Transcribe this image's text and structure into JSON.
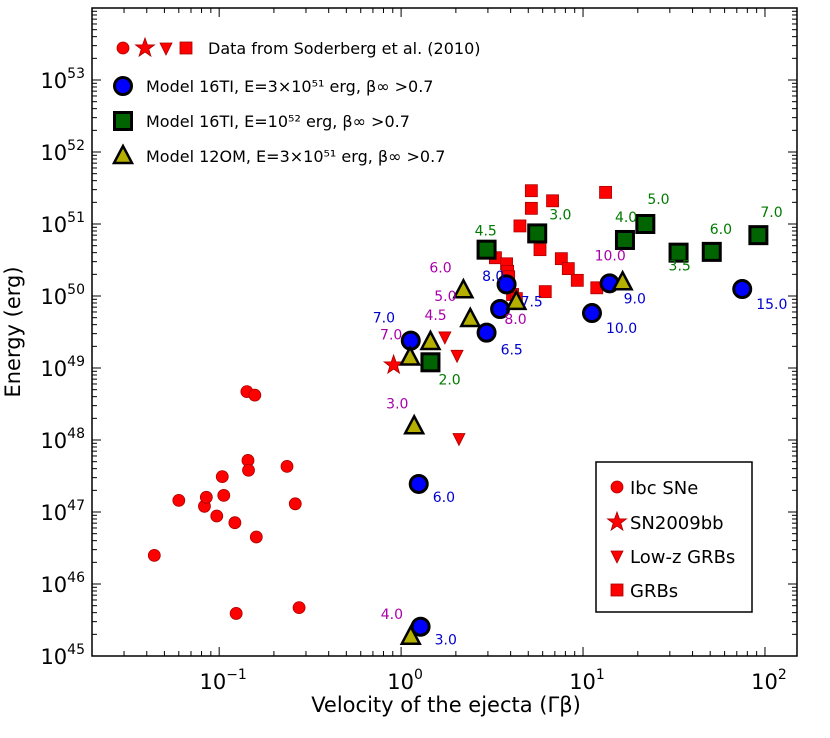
{
  "chart_data": {
    "type": "scatter",
    "xscale": "log",
    "yscale": "log",
    "xlim": [
      0.02,
      150
    ],
    "ylim": [
      1e+45,
      1e+54
    ],
    "xlabel": "Velocity of the ejecta (Γβ)",
    "ylabel": "Energy (erg)",
    "x_ticks": [
      {
        "value": 0.1,
        "base": "10",
        "exp": "−1"
      },
      {
        "value": 1,
        "base": "10",
        "exp": "0"
      },
      {
        "value": 10,
        "base": "10",
        "exp": "1"
      },
      {
        "value": 100,
        "base": "10",
        "exp": "2"
      }
    ],
    "y_ticks": [
      {
        "value": 1e+45,
        "base": "10",
        "exp": "45"
      },
      {
        "value": 1e+46,
        "base": "10",
        "exp": "46"
      },
      {
        "value": 1e+47,
        "base": "10",
        "exp": "47"
      },
      {
        "value": 1e+48,
        "base": "10",
        "exp": "48"
      },
      {
        "value": 1e+49,
        "base": "10",
        "exp": "49"
      },
      {
        "value": 1e+50,
        "base": "10",
        "exp": "50"
      },
      {
        "value": 1e+51,
        "base": "10",
        "exp": "51"
      },
      {
        "value": 1e+52,
        "base": "10",
        "exp": "52"
      },
      {
        "value": 1e+53,
        "base": "10",
        "exp": "53"
      }
    ],
    "legend_top": [
      {
        "kind": "soderberg",
        "text": "Data from Soderberg et al. (2010)"
      },
      {
        "kind": "model16_circle",
        "text": "Model 16TI, E=3×10⁵¹ erg, β∞ >0.7"
      },
      {
        "kind": "model16_square",
        "text": "Model 16TI, E=10⁵² erg, β∞ >0.7"
      },
      {
        "kind": "model12_triangle",
        "text": "Model 12OM, E=3×10⁵¹ erg, β∞ >0.7"
      }
    ],
    "legend_bottom": [
      {
        "kind": "ibc",
        "text": "Ibc SNe"
      },
      {
        "kind": "star",
        "text": "SN2009bb"
      },
      {
        "kind": "lowz",
        "text": "Low-z GRBs"
      },
      {
        "kind": "grb",
        "text": "GRBs"
      }
    ],
    "series": [
      {
        "name": "Ibc SNe",
        "marker": "circle-small",
        "color": "#ff0000",
        "points": [
          [
            0.044,
            2.5e+46
          ],
          [
            0.06,
            1.45e+47
          ],
          [
            0.083,
            1.2e+47
          ],
          [
            0.085,
            1.6e+47
          ],
          [
            0.097,
            8.8e+46
          ],
          [
            0.104,
            3.1e+47
          ],
          [
            0.106,
            1.7e+47
          ],
          [
            0.122,
            7.1e+46
          ],
          [
            0.124,
            3.9e+45
          ],
          [
            0.142,
            4.7e+48
          ],
          [
            0.144,
            5.2e+47
          ],
          [
            0.145,
            3.8e+47
          ],
          [
            0.157,
            4.2e+48
          ],
          [
            0.16,
            4.5e+46
          ],
          [
            0.236,
            4.3e+47
          ],
          [
            0.262,
            1.3e+47
          ],
          [
            0.275,
            4.7e+45
          ]
        ]
      },
      {
        "name": "SN2009bb",
        "marker": "star",
        "color": "#ff0000",
        "points": [
          [
            0.91,
            1.1e+49
          ]
        ]
      },
      {
        "name": "Low-z GRBs",
        "marker": "triangle-down",
        "color": "#ff0000",
        "points": [
          [
            1.74,
            2.7e+49
          ],
          [
            2.03,
            1.5e+49
          ],
          [
            2.08,
            1.05e+48
          ]
        ]
      },
      {
        "name": "GRBs",
        "marker": "square-small",
        "color": "#ff0000",
        "points": [
          [
            3.05,
            4.8e+50
          ],
          [
            3.3,
            3.4e+50
          ],
          [
            3.8,
            2.8e+50
          ],
          [
            3.85,
            2.2e+50
          ],
          [
            3.9,
            1.85e+50
          ],
          [
            4.1,
            1.05e+50
          ],
          [
            4.3,
            9.2e+49
          ],
          [
            4.5,
            9.4e+50
          ],
          [
            5.2,
            2.9e+51
          ],
          [
            5.2,
            1.65e+51
          ],
          [
            5.8,
            4.4e+50
          ],
          [
            6.2,
            1.15e+50
          ],
          [
            6.8,
            2.1e+51
          ],
          [
            7.6,
            3.3e+50
          ],
          [
            8.3,
            2.4e+50
          ],
          [
            9.3,
            1.65e+50
          ],
          [
            11.9,
            1.3e+50
          ],
          [
            13.3,
            2.75e+51
          ]
        ]
      },
      {
        "name": "Model 16TI, E=3e51 erg",
        "marker": "circle",
        "color": "#0000ff",
        "edge": "#000000",
        "points": [
          [
            1.13,
            2.4e+49
          ],
          [
            1.25,
            2.45e+47
          ],
          [
            1.28,
            2.55e+45
          ],
          [
            2.95,
            3.1e+49
          ],
          [
            3.5,
            6.6e+49
          ],
          [
            3.8,
            1.45e+50
          ],
          [
            11.2,
            5.8e+49
          ],
          [
            14.0,
            1.5e+50
          ],
          [
            75.0,
            1.25e+50
          ]
        ],
        "labels": [
          "7.0",
          "6.0",
          "3.0",
          "6.5",
          "8.0",
          "7.5",
          "10.0",
          "9.0",
          "15.0"
        ],
        "label_color": "#0000cc"
      },
      {
        "name": "Model 16TI, E=1e52 erg",
        "marker": "square",
        "color": "#006400",
        "edge": "#000000",
        "points": [
          [
            1.45,
            1.2e+49
          ],
          [
            2.95,
            4.4e+50
          ],
          [
            5.6,
            7.4e+50
          ],
          [
            17.0,
            6e+50
          ],
          [
            22.0,
            1e+51
          ],
          [
            33.5,
            4e+50
          ],
          [
            51.0,
            4.1e+50
          ],
          [
            92.0,
            7e+50
          ]
        ],
        "labels": [
          "2.0",
          "4.5",
          "3.0",
          "4.0",
          "5.0",
          "3.5",
          "6.0",
          "7.0"
        ],
        "label_color": "#007a00"
      },
      {
        "name": "Model 12OM, E=3e51 erg",
        "marker": "triangle-up",
        "color": "#b5b000",
        "edge": "#000000",
        "points": [
          [
            1.12,
            1.4e+49
          ],
          [
            1.18,
            1.55e+48
          ],
          [
            1.13,
            1.85e+45
          ],
          [
            1.45,
            2.3e+49
          ],
          [
            2.2,
            1.2e+50
          ],
          [
            2.4,
            4.8e+49
          ],
          [
            4.3,
            8.3e+49
          ],
          [
            16.5,
            1.55e+50
          ]
        ],
        "labels": [
          "7.0",
          "3.0",
          "4.0",
          "4.5",
          "6.0",
          "5.0",
          "8.0",
          "10.0"
        ],
        "label_color": "#aa00aa"
      }
    ]
  }
}
